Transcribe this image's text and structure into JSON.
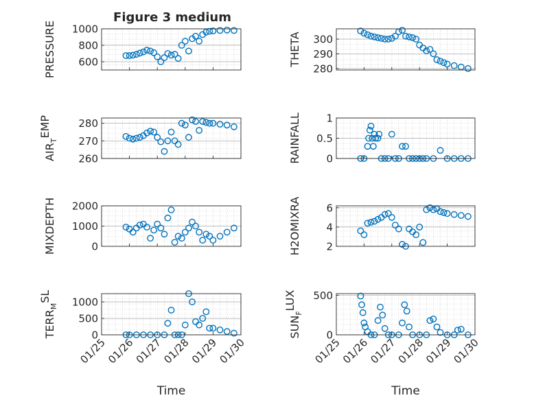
{
  "figure_title": "Figure 3 medium",
  "chart_data": [
    {
      "type": "scatter",
      "ylabel": "PRESSURE",
      "xlabel": "",
      "xlim": [
        "2016-01-25",
        "2016-01-30"
      ],
      "ylim": [
        500,
        1000
      ],
      "yticks": [
        600,
        800,
        1000
      ],
      "grid": true,
      "marker": "circle",
      "color": "#0072BD",
      "series": [
        {
          "x": [
            "2016-01-25T21:00",
            "2016-01-26T00:00",
            "2016-01-26T03:00",
            "2016-01-26T06:00",
            "2016-01-26T09:00",
            "2016-01-26T12:00",
            "2016-01-26T15:00",
            "2016-01-26T18:00",
            "2016-01-26T21:00",
            "2016-01-27T00:00",
            "2016-01-27T03:00",
            "2016-01-27T06:00",
            "2016-01-27T09:00",
            "2016-01-27T12:00",
            "2016-01-27T15:00",
            "2016-01-27T18:00",
            "2016-01-27T21:00",
            "2016-01-28T00:00",
            "2016-01-28T03:00",
            "2016-01-28T06:00",
            "2016-01-28T09:00",
            "2016-01-28T12:00",
            "2016-01-28T15:00",
            "2016-01-28T18:00",
            "2016-01-28T21:00",
            "2016-01-29T00:00",
            "2016-01-29T06:00",
            "2016-01-29T12:00",
            "2016-01-29T18:00"
          ],
          "y": [
            675,
            675,
            680,
            690,
            705,
            720,
            740,
            730,
            710,
            660,
            600,
            650,
            700,
            680,
            690,
            640,
            800,
            850,
            730,
            880,
            910,
            850,
            930,
            960,
            970,
            975,
            980,
            985,
            980
          ]
        }
      ]
    },
    {
      "type": "scatter",
      "ylabel": "THETA",
      "xlabel": "",
      "xlim": [
        "2016-01-25",
        "2016-01-30"
      ],
      "ylim": [
        279,
        307
      ],
      "yticks": [
        280,
        290,
        300
      ],
      "grid": true,
      "marker": "circle",
      "color": "#0072BD",
      "series": [
        {
          "x": [
            "2016-01-25T21:00",
            "2016-01-26T00:00",
            "2016-01-26T03:00",
            "2016-01-26T06:00",
            "2016-01-26T09:00",
            "2016-01-26T12:00",
            "2016-01-26T15:00",
            "2016-01-26T18:00",
            "2016-01-26T21:00",
            "2016-01-27T00:00",
            "2016-01-27T03:00",
            "2016-01-27T06:00",
            "2016-01-27T09:00",
            "2016-01-27T12:00",
            "2016-01-27T15:00",
            "2016-01-27T18:00",
            "2016-01-27T21:00",
            "2016-01-28T00:00",
            "2016-01-28T03:00",
            "2016-01-28T06:00",
            "2016-01-28T09:00",
            "2016-01-28T12:00",
            "2016-01-28T15:00",
            "2016-01-28T18:00",
            "2016-01-28T21:00",
            "2016-01-29T00:00",
            "2016-01-29T06:00",
            "2016-01-29T12:00",
            "2016-01-29T18:00"
          ],
          "y": [
            305.5,
            304,
            303,
            302,
            301.5,
            301,
            300.5,
            300,
            300,
            300.5,
            302,
            305,
            306,
            302,
            301.5,
            301,
            300,
            296,
            294,
            292,
            293,
            290,
            286,
            285,
            284,
            283,
            282,
            281,
            280
          ]
        }
      ]
    },
    {
      "type": "scatter",
      "ylabel": "AIR_TEMP",
      "xlabel": "",
      "xlim": [
        "2016-01-25",
        "2016-01-30"
      ],
      "ylim": [
        260,
        283
      ],
      "yticks": [
        260,
        270,
        280
      ],
      "grid": true,
      "marker": "circle",
      "color": "#0072BD",
      "series": [
        {
          "x": [
            "2016-01-25T21:00",
            "2016-01-26T00:00",
            "2016-01-26T03:00",
            "2016-01-26T06:00",
            "2016-01-26T09:00",
            "2016-01-26T12:00",
            "2016-01-26T15:00",
            "2016-01-26T18:00",
            "2016-01-26T21:00",
            "2016-01-27T00:00",
            "2016-01-27T03:00",
            "2016-01-27T06:00",
            "2016-01-27T09:00",
            "2016-01-27T12:00",
            "2016-01-27T15:00",
            "2016-01-27T18:00",
            "2016-01-27T21:00",
            "2016-01-28T00:00",
            "2016-01-28T03:00",
            "2016-01-28T06:00",
            "2016-01-28T09:00",
            "2016-01-28T12:00",
            "2016-01-28T15:00",
            "2016-01-28T18:00",
            "2016-01-28T21:00",
            "2016-01-29T00:00",
            "2016-01-29T06:00",
            "2016-01-29T12:00",
            "2016-01-29T18:00"
          ],
          "y": [
            272.5,
            271.5,
            271,
            271.5,
            272,
            273,
            274.5,
            275.5,
            275,
            272,
            269.5,
            264,
            270,
            275,
            270,
            268,
            280,
            279,
            272,
            282,
            281,
            276,
            281,
            280.5,
            280,
            280,
            279.5,
            279,
            278
          ]
        }
      ]
    },
    {
      "type": "scatter",
      "ylabel": "RAINFALL",
      "xlabel": "",
      "xlim": [
        "2016-01-25",
        "2016-01-30"
      ],
      "ylim": [
        0,
        1
      ],
      "yticks": [
        0,
        0.5,
        1
      ],
      "grid": true,
      "marker": "circle",
      "color": "#0072BD",
      "series": [
        {
          "x": [
            "2016-01-25T21:00",
            "2016-01-26T00:00",
            "2016-01-26T03:00",
            "2016-01-26T04:00",
            "2016-01-26T05:00",
            "2016-01-26T06:00",
            "2016-01-26T07:00",
            "2016-01-26T08:00",
            "2016-01-26T09:00",
            "2016-01-26T10:00",
            "2016-01-26T12:00",
            "2016-01-26T13:00",
            "2016-01-26T15:00",
            "2016-01-26T18:00",
            "2016-01-26T21:00",
            "2016-01-27T00:00",
            "2016-01-27T03:00",
            "2016-01-27T06:00",
            "2016-01-27T09:00",
            "2016-01-27T12:00",
            "2016-01-27T15:00",
            "2016-01-27T18:00",
            "2016-01-27T21:00",
            "2016-01-28T00:00",
            "2016-01-28T03:00",
            "2016-01-28T06:00",
            "2016-01-28T12:00",
            "2016-01-28T18:00",
            "2016-01-29T00:00",
            "2016-01-29T06:00",
            "2016-01-29T12:00",
            "2016-01-29T18:00"
          ],
          "y": [
            0,
            0,
            0.3,
            0.5,
            0.7,
            0.8,
            0.5,
            0.3,
            0.6,
            0.5,
            0.5,
            0.6,
            0,
            0,
            0,
            0.6,
            0,
            0,
            0.3,
            0.3,
            0,
            0,
            0,
            0,
            0,
            0,
            0,
            0.2,
            0,
            0,
            0,
            0
          ]
        }
      ]
    },
    {
      "type": "scatter",
      "ylabel": "MIXDEPTH",
      "xlabel": "",
      "xlim": [
        "2016-01-25",
        "2016-01-30"
      ],
      "ylim": [
        0,
        2000
      ],
      "yticks": [
        0,
        1000,
        2000
      ],
      "grid": true,
      "marker": "circle",
      "color": "#0072BD",
      "series": [
        {
          "x": [
            "2016-01-25T21:00",
            "2016-01-26T00:00",
            "2016-01-26T03:00",
            "2016-01-26T06:00",
            "2016-01-26T09:00",
            "2016-01-26T12:00",
            "2016-01-26T15:00",
            "2016-01-26T18:00",
            "2016-01-26T21:00",
            "2016-01-27T00:00",
            "2016-01-27T03:00",
            "2016-01-27T06:00",
            "2016-01-27T09:00",
            "2016-01-27T12:00",
            "2016-01-27T15:00",
            "2016-01-27T18:00",
            "2016-01-27T21:00",
            "2016-01-28T00:00",
            "2016-01-28T03:00",
            "2016-01-28T06:00",
            "2016-01-28T09:00",
            "2016-01-28T12:00",
            "2016-01-28T15:00",
            "2016-01-28T18:00",
            "2016-01-28T21:00",
            "2016-01-29T00:00",
            "2016-01-29T06:00",
            "2016-01-29T12:00",
            "2016-01-29T18:00"
          ],
          "y": [
            950,
            850,
            700,
            900,
            1050,
            1100,
            950,
            400,
            800,
            1100,
            900,
            600,
            1400,
            1800,
            200,
            500,
            400,
            700,
            900,
            1200,
            1000,
            700,
            300,
            600,
            500,
            300,
            500,
            700,
            900
          ]
        }
      ]
    },
    {
      "type": "scatter",
      "ylabel": "H2OMIXRA",
      "xlabel": "",
      "xlim": [
        "2016-01-25",
        "2016-01-30"
      ],
      "ylim": [
        2,
        6.2
      ],
      "yticks": [
        2,
        4,
        6
      ],
      "grid": true,
      "marker": "circle",
      "color": "#0072BD",
      "series": [
        {
          "x": [
            "2016-01-25T21:00",
            "2016-01-26T00:00",
            "2016-01-26T03:00",
            "2016-01-26T06:00",
            "2016-01-26T09:00",
            "2016-01-26T12:00",
            "2016-01-26T15:00",
            "2016-01-26T18:00",
            "2016-01-26T21:00",
            "2016-01-27T00:00",
            "2016-01-27T03:00",
            "2016-01-27T06:00",
            "2016-01-27T09:00",
            "2016-01-27T12:00",
            "2016-01-27T15:00",
            "2016-01-27T18:00",
            "2016-01-27T21:00",
            "2016-01-28T00:00",
            "2016-01-28T03:00",
            "2016-01-28T06:00",
            "2016-01-28T09:00",
            "2016-01-28T12:00",
            "2016-01-28T15:00",
            "2016-01-28T18:00",
            "2016-01-28T21:00",
            "2016-01-29T00:00",
            "2016-01-29T06:00",
            "2016-01-29T12:00",
            "2016-01-29T18:00"
          ],
          "y": [
            3.6,
            3.2,
            4.4,
            4.5,
            4.6,
            4.8,
            5.0,
            5.3,
            5.4,
            5.0,
            4.2,
            3.8,
            2.2,
            2.0,
            3.8,
            3.5,
            3.2,
            4.0,
            2.4,
            5.8,
            6.0,
            5.8,
            5.9,
            5.6,
            5.5,
            5.4,
            5.3,
            5.2,
            5.1
          ]
        }
      ]
    },
    {
      "type": "scatter",
      "ylabel": "TERR_MSL",
      "xlabel": "Time",
      "xlim": [
        "2016-01-25",
        "2016-01-30"
      ],
      "ylim": [
        0,
        1250
      ],
      "yticks": [
        0,
        500,
        1000
      ],
      "xticklabels": [
        "01/25",
        "01/26",
        "01/27",
        "01/28",
        "01/29",
        "01/30"
      ],
      "grid": true,
      "marker": "circle",
      "color": "#0072BD",
      "series": [
        {
          "x": [
            "2016-01-25T21:00",
            "2016-01-26T00:00",
            "2016-01-26T06:00",
            "2016-01-26T12:00",
            "2016-01-26T18:00",
            "2016-01-27T00:00",
            "2016-01-27T06:00",
            "2016-01-27T09:00",
            "2016-01-27T12:00",
            "2016-01-27T15:00",
            "2016-01-27T18:00",
            "2016-01-27T21:00",
            "2016-01-28T00:00",
            "2016-01-28T03:00",
            "2016-01-28T06:00",
            "2016-01-28T09:00",
            "2016-01-28T12:00",
            "2016-01-28T15:00",
            "2016-01-28T18:00",
            "2016-01-28T21:00",
            "2016-01-29T00:00",
            "2016-01-29T06:00",
            "2016-01-29T12:00",
            "2016-01-29T18:00"
          ],
          "y": [
            0,
            0,
            0,
            0,
            0,
            0,
            0,
            350,
            750,
            0,
            0,
            0,
            300,
            1250,
            1000,
            400,
            300,
            500,
            700,
            200,
            200,
            150,
            100,
            50
          ]
        }
      ]
    },
    {
      "type": "scatter",
      "ylabel": "SUN_FLUX",
      "xlabel": "Time",
      "xlim": [
        "2016-01-25",
        "2016-01-30"
      ],
      "ylim": [
        0,
        520
      ],
      "yticks": [
        0,
        500
      ],
      "xticklabels": [
        "01/25",
        "01/26",
        "01/27",
        "01/28",
        "01/29",
        "01/30"
      ],
      "grid": true,
      "marker": "circle",
      "color": "#0072BD",
      "series": [
        {
          "x": [
            "2016-01-25T21:00",
            "2016-01-25T22:00",
            "2016-01-25T23:00",
            "2016-01-26T00:00",
            "2016-01-26T01:00",
            "2016-01-26T03:00",
            "2016-01-26T06:00",
            "2016-01-26T09:00",
            "2016-01-26T12:00",
            "2016-01-26T14:00",
            "2016-01-26T16:00",
            "2016-01-26T18:00",
            "2016-01-26T21:00",
            "2016-01-27T00:00",
            "2016-01-27T06:00",
            "2016-01-27T09:00",
            "2016-01-27T11:00",
            "2016-01-27T13:00",
            "2016-01-27T15:00",
            "2016-01-27T18:00",
            "2016-01-28T00:00",
            "2016-01-28T06:00",
            "2016-01-28T09:00",
            "2016-01-28T12:00",
            "2016-01-28T15:00",
            "2016-01-28T18:00",
            "2016-01-29T00:00",
            "2016-01-29T06:00",
            "2016-01-29T09:00",
            "2016-01-29T12:00",
            "2016-01-29T18:00"
          ],
          "y": [
            490,
            380,
            280,
            150,
            100,
            40,
            0,
            0,
            180,
            350,
            250,
            80,
            0,
            0,
            0,
            150,
            380,
            300,
            100,
            0,
            0,
            0,
            180,
            200,
            100,
            30,
            0,
            0,
            60,
            70,
            0
          ]
        }
      ]
    }
  ]
}
